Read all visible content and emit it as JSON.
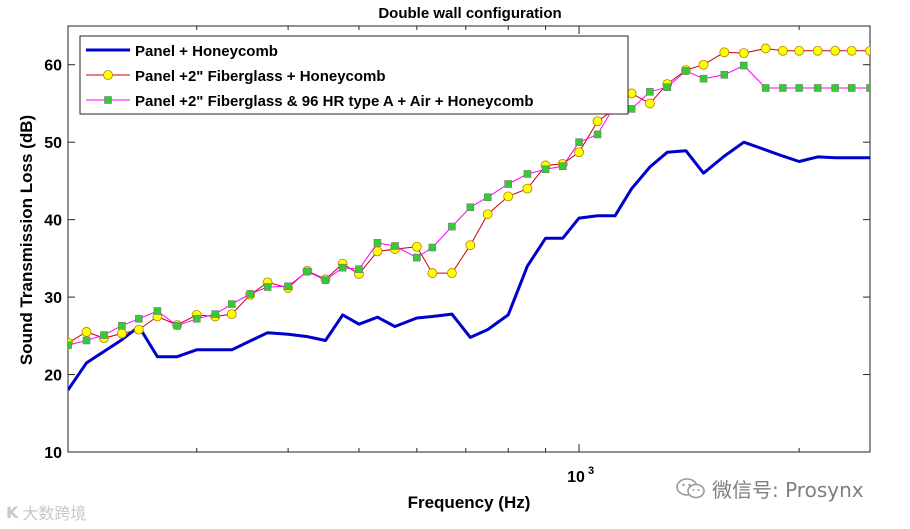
{
  "chart_data": {
    "type": "line",
    "title": "Double wall configuration",
    "xlabel": "Frequency (Hz)",
    "ylabel": "Sound Transmission Loss (dB)",
    "xscale": "log",
    "xlim": [
      200,
      2500
    ],
    "ylim": [
      10,
      65
    ],
    "yticks": [
      10,
      20,
      30,
      40,
      50,
      60
    ],
    "xtick_labels": [
      {
        "value": 1000,
        "label": "10",
        "exponent": "3"
      }
    ],
    "grid": false,
    "legend_position": "top-left",
    "series": [
      {
        "name": "Panel + Honeycomb",
        "color": "#0000cc",
        "marker": "none",
        "x": [
          200,
          212,
          237,
          250,
          265,
          282,
          300,
          335,
          375,
          400,
          425,
          450,
          475,
          500,
          530,
          560,
          600,
          630,
          670,
          710,
          750,
          800,
          850,
          900,
          950,
          1000,
          1060,
          1120,
          1180,
          1250,
          1320,
          1400,
          1480,
          1580,
          1680,
          1800,
          1900,
          2000,
          2120,
          2240,
          2360,
          2500
        ],
        "y": [
          18.0,
          21.5,
          24.5,
          26.2,
          22.3,
          22.3,
          23.2,
          23.2,
          25.4,
          25.2,
          24.9,
          24.4,
          27.7,
          26.5,
          27.4,
          26.2,
          27.3,
          27.5,
          27.8,
          24.8,
          25.8,
          27.7,
          34.0,
          37.6,
          37.6,
          40.2,
          40.5,
          40.5,
          44.0,
          46.8,
          48.7,
          48.9,
          46.0,
          48.2,
          50.0,
          49.0,
          48.2,
          47.5,
          48.1,
          48.0,
          48.0,
          48.0
        ]
      },
      {
        "name": "Panel +2\" Fiberglass + Honeycomb",
        "color": "#cc0000",
        "marker": "circle",
        "marker_fill": "#ffff00",
        "x": [
          200,
          212,
          224,
          237,
          250,
          265,
          282,
          300,
          318,
          335,
          355,
          375,
          400,
          425,
          450,
          475,
          500,
          530,
          560,
          600,
          630,
          670,
          710,
          750,
          800,
          850,
          900,
          950,
          1000,
          1060,
          1120,
          1180,
          1250,
          1320,
          1400,
          1480,
          1580,
          1680,
          1800,
          1900,
          2000,
          2120,
          2240,
          2360,
          2500
        ],
        "y": [
          24.1,
          25.5,
          24.7,
          25.3,
          25.8,
          27.5,
          26.4,
          27.7,
          27.5,
          27.8,
          30.3,
          31.9,
          31.2,
          33.4,
          32.3,
          34.3,
          33.0,
          35.9,
          36.2,
          36.5,
          33.1,
          33.1,
          36.7,
          40.7,
          43.0,
          44.0,
          47.0,
          47.2,
          48.7,
          52.7,
          54.3,
          56.3,
          55.0,
          57.5,
          59.3,
          60.0,
          61.6,
          61.5,
          62.1,
          61.8,
          61.8,
          61.8,
          61.8,
          61.8,
          61.8
        ]
      },
      {
        "name": "Panel +2\" Fiberglass & 96 HR type A + Air + Honeycomb",
        "color": "#ff00ff",
        "marker": "square",
        "marker_fill": "#33cc33",
        "x": [
          200,
          212,
          224,
          237,
          250,
          265,
          282,
          300,
          318,
          335,
          355,
          375,
          400,
          425,
          450,
          475,
          500,
          530,
          560,
          600,
          630,
          670,
          710,
          750,
          800,
          850,
          900,
          950,
          1000,
          1060,
          1120,
          1180,
          1250,
          1320,
          1400,
          1480,
          1580,
          1680,
          1800,
          1900,
          2000,
          2120,
          2240,
          2360,
          2500
        ],
        "y": [
          23.8,
          24.4,
          25.1,
          26.3,
          27.2,
          28.2,
          26.3,
          27.2,
          27.8,
          29.1,
          30.4,
          31.3,
          31.4,
          33.3,
          32.2,
          33.8,
          33.6,
          37.0,
          36.6,
          35.1,
          36.4,
          39.1,
          41.6,
          42.9,
          44.6,
          45.9,
          46.5,
          46.9,
          50.0,
          51.0,
          54.8,
          54.3,
          56.5,
          57.1,
          59.2,
          58.2,
          58.7,
          59.9,
          57.0,
          57.0,
          57.0,
          57.0,
          57.0,
          57.0,
          57.0
        ]
      }
    ]
  },
  "watermark": {
    "right_text": "微信号: Prosynx",
    "left_text": "大数跨境"
  }
}
